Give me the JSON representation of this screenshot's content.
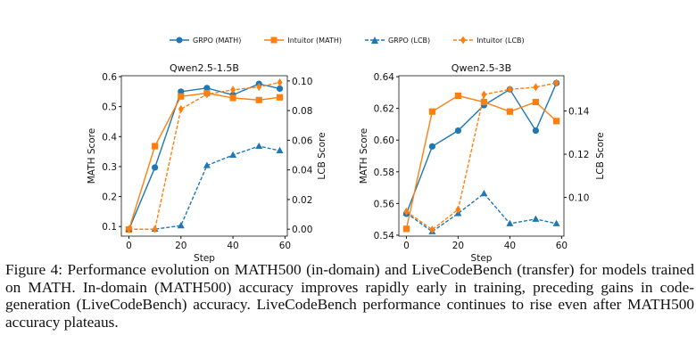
{
  "legend": [
    {
      "label": "GRPO (MATH)",
      "color": "#1f77b4",
      "marker": "circle",
      "line": "solid"
    },
    {
      "label": "Intuitor (MATH)",
      "color": "#ff7f0e",
      "marker": "square",
      "line": "solid"
    },
    {
      "label": "GRPO (LCB)",
      "color": "#1f77b4",
      "marker": "triangle",
      "line": "dashed"
    },
    {
      "label": "Intuitor (LCB)",
      "color": "#ff7f0e",
      "marker": "diamond",
      "line": "dashed"
    }
  ],
  "chart_data": [
    {
      "type": "line",
      "title": "Qwen2.5-1.5B",
      "xlabel": "Step",
      "ylabel": "MATH Score",
      "y2label": "LCB Score",
      "x": [
        0,
        10,
        20,
        30,
        40,
        50,
        58
      ],
      "xlim": [
        -2.9,
        60.9
      ],
      "ylim": [
        0.068,
        0.603
      ],
      "y2lim": [
        -0.0047,
        0.1035
      ],
      "xticks": [
        "0",
        "20",
        "40",
        "60"
      ],
      "yticks": [
        "0.1",
        "0.2",
        "0.3",
        "0.4",
        "0.5",
        "0.6"
      ],
      "y2ticks": [
        "0.00",
        "0.02",
        "0.04",
        "0.06",
        "0.08",
        "0.10"
      ],
      "series": [
        {
          "name": "GRPO (MATH)",
          "axis": "left",
          "values": [
            0.09,
            0.297,
            0.55,
            0.562,
            0.539,
            0.576,
            0.56
          ]
        },
        {
          "name": "Intuitor (MATH)",
          "axis": "left",
          "values": [
            0.09,
            0.368,
            0.534,
            0.545,
            0.529,
            0.522,
            0.531
          ]
        },
        {
          "name": "GRPO (LCB)",
          "axis": "right",
          "values": [
            0.0,
            0.0,
            0.0024,
            0.043,
            0.05,
            0.056,
            0.053
          ]
        },
        {
          "name": "Intuitor (LCB)",
          "axis": "right",
          "values": [
            0.0,
            0.0,
            0.081,
            0.091,
            0.094,
            0.096,
            0.099
          ]
        }
      ]
    },
    {
      "type": "line",
      "title": "Qwen2.5-3B",
      "xlabel": "Step",
      "ylabel": "MATH Score",
      "y2label": "LCB Score",
      "x": [
        0,
        10,
        20,
        30,
        40,
        50,
        58
      ],
      "xlim": [
        -2.9,
        60.9
      ],
      "ylim": [
        0.5394,
        0.6406
      ],
      "y2lim": [
        0.0821,
        0.1563
      ],
      "xticks": [
        "0",
        "20",
        "40",
        "60"
      ],
      "yticks": [
        "0.54",
        "0.56",
        "0.58",
        "0.60",
        "0.62",
        "0.64"
      ],
      "y2ticks": [
        "0.10",
        "0.12",
        "0.14"
      ],
      "series": [
        {
          "name": "GRPO (MATH)",
          "axis": "left",
          "values": [
            0.5535,
            0.596,
            0.606,
            0.622,
            0.632,
            0.606,
            0.636
          ]
        },
        {
          "name": "Intuitor (MATH)",
          "axis": "left",
          "values": [
            0.544,
            0.618,
            0.628,
            0.624,
            0.618,
            0.624,
            0.612
          ]
        },
        {
          "name": "GRPO (LCB)",
          "axis": "right",
          "values": [
            0.0928,
            0.0842,
            0.0926,
            0.1018,
            0.0879,
            0.09,
            0.0879
          ]
        },
        {
          "name": "Intuitor (LCB)",
          "axis": "right",
          "values": [
            0.0935,
            0.0851,
            0.0944,
            0.1476,
            0.15,
            0.151,
            0.153
          ]
        }
      ]
    }
  ],
  "caption": "Figure 4: Performance evolution on MATH500 (in-domain) and LiveCodeBench (transfer) for models trained on MATH. In-domain (MATH500) accuracy improves rapidly early in training, preceding gains in code-generation (LiveCodeBench) accuracy. LiveCodeBench performance continues to rise even after MATH500 accuracy plateaus."
}
